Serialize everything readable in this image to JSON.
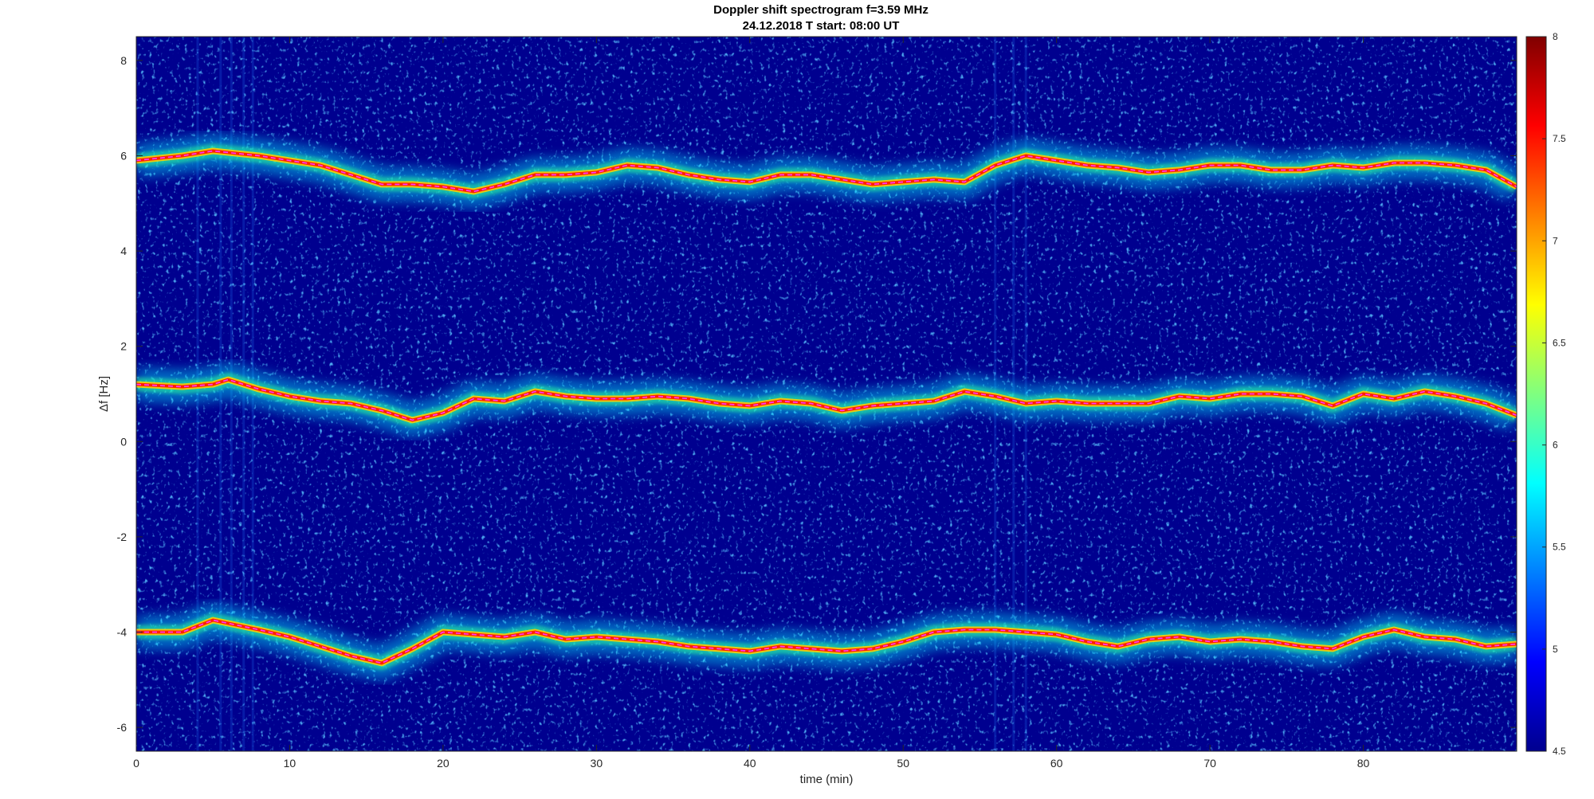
{
  "chart_data": {
    "type": "heatmap",
    "title": "Doppler shift spectrogram f=3.59 MHz",
    "subtitle": "24.12.2018   T start: 08:00 UT",
    "xlabel": "time (min)",
    "ylabel": "Δf [Hz]",
    "xlim": [
      0,
      90
    ],
    "ylim": [
      -6.5,
      8.5
    ],
    "xticks": [
      0,
      10,
      20,
      30,
      40,
      50,
      60,
      70,
      80
    ],
    "yticks": [
      -6,
      -4,
      -2,
      0,
      2,
      4,
      6,
      8
    ],
    "colorbar": {
      "colormap": "jet",
      "clim": [
        4.5,
        8
      ],
      "ticks": [
        4.5,
        5,
        5.5,
        6,
        6.5,
        7,
        7.5,
        8
      ]
    },
    "grid": false,
    "series": [
      {
        "x": [
          0,
          3,
          5,
          8,
          10,
          12,
          14,
          16,
          18,
          20,
          22,
          24,
          26,
          28,
          30,
          32,
          34,
          36,
          38,
          40,
          42,
          44,
          46,
          48,
          50,
          52,
          54,
          56,
          58,
          60,
          62,
          64,
          66,
          68,
          70,
          72,
          74,
          76,
          78,
          80,
          82,
          84,
          86,
          88,
          90
        ],
        "y": [
          5.9,
          6.0,
          6.1,
          6.0,
          5.9,
          5.8,
          5.6,
          5.4,
          5.4,
          5.35,
          5.25,
          5.4,
          5.6,
          5.6,
          5.65,
          5.8,
          5.75,
          5.6,
          5.5,
          5.45,
          5.6,
          5.6,
          5.5,
          5.4,
          5.45,
          5.5,
          5.45,
          5.8,
          6.0,
          5.9,
          5.8,
          5.75,
          5.65,
          5.7,
          5.8,
          5.8,
          5.7,
          5.7,
          5.8,
          5.75,
          5.85,
          5.85,
          5.8,
          5.7,
          5.35
        ]
      },
      {
        "x": [
          0,
          3,
          5,
          6,
          8,
          10,
          12,
          14,
          16,
          18,
          20,
          22,
          24,
          26,
          28,
          30,
          32,
          34,
          36,
          38,
          40,
          42,
          44,
          46,
          48,
          50,
          52,
          54,
          56,
          58,
          60,
          62,
          64,
          66,
          68,
          70,
          72,
          74,
          76,
          78,
          80,
          82,
          84,
          86,
          88,
          90
        ],
        "y": [
          1.2,
          1.15,
          1.2,
          1.3,
          1.1,
          0.95,
          0.85,
          0.8,
          0.65,
          0.45,
          0.6,
          0.9,
          0.85,
          1.05,
          0.95,
          0.9,
          0.9,
          0.95,
          0.9,
          0.8,
          0.75,
          0.85,
          0.8,
          0.65,
          0.75,
          0.8,
          0.85,
          1.05,
          0.95,
          0.8,
          0.85,
          0.8,
          0.8,
          0.8,
          0.95,
          0.9,
          1.0,
          1.0,
          0.95,
          0.75,
          1.0,
          0.9,
          1.05,
          0.95,
          0.8,
          0.55
        ]
      },
      {
        "x": [
          0,
          3,
          5,
          8,
          10,
          12,
          14,
          16,
          18,
          20,
          22,
          24,
          26,
          28,
          30,
          32,
          34,
          36,
          38,
          40,
          42,
          44,
          46,
          48,
          50,
          52,
          54,
          56,
          58,
          60,
          62,
          64,
          66,
          68,
          70,
          72,
          74,
          76,
          78,
          80,
          82,
          84,
          86,
          88,
          90
        ],
        "y": [
          -4.0,
          -4.0,
          -3.75,
          -3.95,
          -4.1,
          -4.3,
          -4.5,
          -4.65,
          -4.35,
          -4.0,
          -4.05,
          -4.1,
          -4.0,
          -4.15,
          -4.1,
          -4.15,
          -4.2,
          -4.3,
          -4.35,
          -4.4,
          -4.3,
          -4.35,
          -4.4,
          -4.35,
          -4.2,
          -4.0,
          -3.95,
          -3.95,
          -4.0,
          -4.05,
          -4.2,
          -4.3,
          -4.15,
          -4.1,
          -4.2,
          -4.15,
          -4.2,
          -4.3,
          -4.35,
          -4.1,
          -3.95,
          -4.1,
          -4.15,
          -4.3,
          -4.25
        ]
      }
    ]
  }
}
